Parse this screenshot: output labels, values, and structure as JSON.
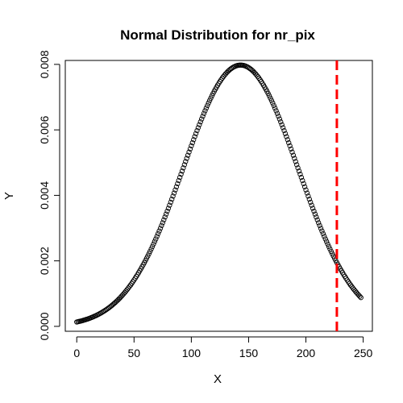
{
  "chart_data": {
    "type": "scatter",
    "title": "Normal Distribution for nr_pix",
    "xlabel": "X",
    "ylabel": "Y",
    "xlim": [
      -10,
      258
    ],
    "ylim": [
      -0.00015,
      0.00812
    ],
    "xticks": [
      0,
      50,
      100,
      150,
      200,
      250
    ],
    "xtick_labels": [
      "0",
      "50",
      "100",
      "150",
      "200",
      "250"
    ],
    "yticks": [
      0,
      0.002,
      0.004,
      0.006,
      0.008
    ],
    "ytick_labels": [
      "0.000",
      "0.002",
      "0.004",
      "0.006",
      "0.008"
    ],
    "grid": false,
    "legend": "none",
    "points": {
      "x_start": 0,
      "x_end": 248,
      "x_step": 1,
      "mean": 143,
      "sd": 50,
      "marker": "open-circle",
      "color": "#000000"
    },
    "reference_line": {
      "orientation": "vertical",
      "x": 227,
      "style": "dashed",
      "color": "#ff0000"
    }
  }
}
